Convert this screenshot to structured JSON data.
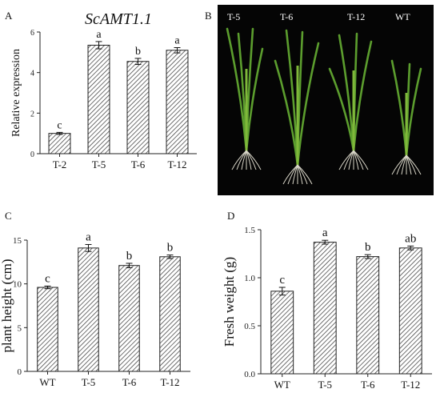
{
  "panels": {
    "a": {
      "letter": "A"
    },
    "b": {
      "letter": "B"
    },
    "c": {
      "letter": "C"
    },
    "d": {
      "letter": "D"
    }
  },
  "photo": {
    "labels": [
      "T-5",
      "T-6",
      "T-12",
      "WT"
    ],
    "background": "#050505",
    "plant_color": "#5c9e2e"
  },
  "chart_data": [
    {
      "type": "bar",
      "title": "ScAMT1.1",
      "ylabel": "Relative expression",
      "xlabel": "",
      "categories": [
        "T-2",
        "T-5",
        "T-6",
        "T-12"
      ],
      "values": [
        1.0,
        5.35,
        4.55,
        5.1
      ],
      "errors": [
        0.05,
        0.18,
        0.15,
        0.13
      ],
      "letters": [
        "c",
        "a",
        "b",
        "a"
      ],
      "ylim": [
        0,
        6
      ],
      "yticks": [
        "0",
        "2",
        "4",
        "6"
      ],
      "bar_pattern": "diagonal-hatch"
    },
    {
      "type": "bar",
      "title": "",
      "ylabel": "plant height (cm)",
      "xlabel": "",
      "categories": [
        "WT",
        "T-5",
        "T-6",
        "T-12"
      ],
      "values": [
        9.6,
        14.1,
        12.1,
        13.1
      ],
      "errors": [
        0.15,
        0.4,
        0.25,
        0.2
      ],
      "letters": [
        "c",
        "a",
        "b",
        "b"
      ],
      "ylim": [
        0,
        15
      ],
      "yticks": [
        "0",
        "5",
        "10",
        "15"
      ],
      "bar_pattern": "diagonal-hatch"
    },
    {
      "type": "bar",
      "title": "",
      "ylabel": "Fresh weight (g)",
      "xlabel": "",
      "categories": [
        "WT",
        "T-5",
        "T-6",
        "T-12"
      ],
      "values": [
        0.86,
        1.37,
        1.22,
        1.31
      ],
      "errors": [
        0.04,
        0.02,
        0.02,
        0.02
      ],
      "letters": [
        "c",
        "a",
        "b",
        "ab"
      ],
      "ylim": [
        0,
        1.5
      ],
      "yticks": [
        "0.0",
        "0.5",
        "1.0",
        "1.5"
      ],
      "bar_pattern": "diagonal-hatch"
    }
  ]
}
